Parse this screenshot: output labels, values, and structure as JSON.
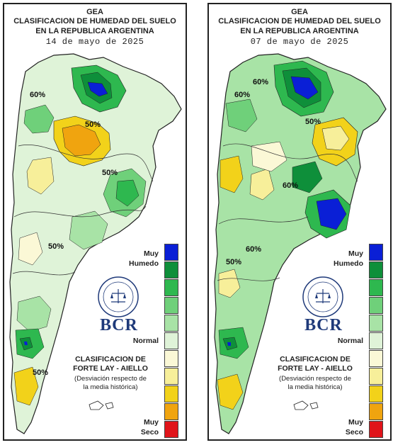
{
  "panels": [
    {
      "title1": "GEA",
      "title2": "CLASIFICACION DE HUMEDAD DEL SUELO",
      "title3": "EN LA REPUBLICA ARGENTINA",
      "date": "14 de mayo de 2025",
      "contour_labels": [
        "60%",
        "50%",
        "50%",
        "50%",
        "50%"
      ]
    },
    {
      "title1": "GEA",
      "title2": "CLASIFICACION DE HUMEDAD DEL SUELO",
      "title3": "EN LA REPUBLICA ARGENTINA",
      "date": "07 de mayo de 2025",
      "contour_labels": [
        "60%",
        "60%",
        "50%",
        "60%",
        "50%",
        "60%"
      ]
    }
  ],
  "legend": {
    "top_label_1": "Muy",
    "top_label_2": "Humedo",
    "mid_label": "Normal",
    "bottom_label_1": "Muy",
    "bottom_label_2": "Seco",
    "colors": [
      "#0a1fd6",
      "#0e8f3a",
      "#2eb84f",
      "#6fd07a",
      "#a8e3a6",
      "#dff3d8",
      "#fbf8d6",
      "#f7ef9a",
      "#f2d21a",
      "#f0a40f",
      "#e25a0f",
      "#e0141a"
    ]
  },
  "logo": {
    "seal_text": "BOLSA DE COMERCIO DE ROSARIO",
    "brand": "BCR"
  },
  "classification": {
    "line1": "CLASIFICACION DE",
    "line2": "FORTE LAY - AIELLO",
    "note1": "(Desviación respecto de",
    "note2": "la media histórica)"
  },
  "colors": {
    "muy_humedo": "#0a1fd6",
    "dark_green": "#0e8f3a",
    "light_green": "#a8e3a6",
    "pale_yellow": "#fbf8d6",
    "yellow": "#f2d21a",
    "muy_seco": "#e0141a"
  }
}
